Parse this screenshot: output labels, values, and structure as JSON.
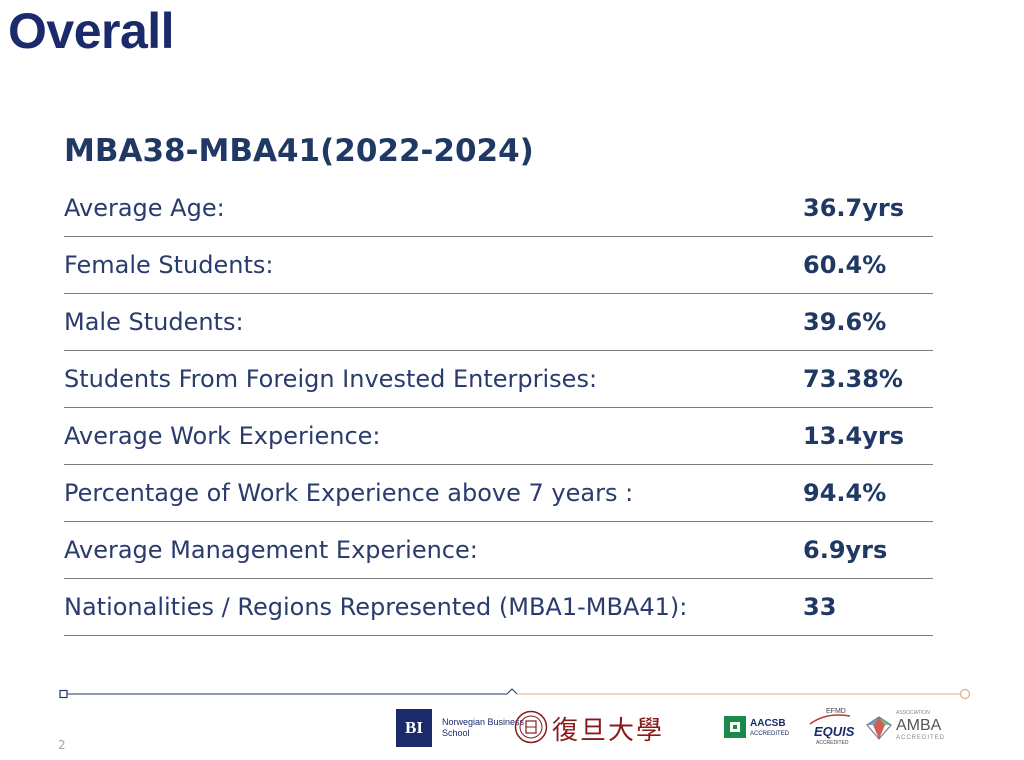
{
  "slide": {
    "title": "Overall",
    "page_number": "2"
  },
  "section": {
    "heading": "MBA38-MBA41(2022-2024)"
  },
  "stats": [
    {
      "label": "Average Age:",
      "value": "36.7yrs"
    },
    {
      "label": "Female Students:",
      "value": "60.4%"
    },
    {
      "label": "Male Students:",
      "value": "39.6%"
    },
    {
      "label": "Students From Foreign Invested Enterprises:",
      "value": "73.38%"
    },
    {
      "label": "Average Work Experience:",
      "value": "13.4yrs"
    },
    {
      "label": "Percentage of Work Experience above 7 years :",
      "value": "94.4%"
    },
    {
      "label": "Average Management Experience:",
      "value": "6.9yrs"
    },
    {
      "label": "Nationalities / Regions Represented (MBA1-MBA41):",
      "value": "33"
    }
  ],
  "footer": {
    "bi_logo_mark": "BI",
    "bi_logo_text": "Norwegian Business School",
    "fudan_text": "復旦大學",
    "aacsb_name": "AACSB",
    "aacsb_sub": "ACCREDITED",
    "equis_top": "EFMD",
    "equis_name": "EQUIS",
    "equis_sub": "ACCREDITED",
    "amba_assoc": "ASSOCIATION",
    "amba_name": "AMBA",
    "amba_sub": "ACCREDITED"
  },
  "colors": {
    "title": "#1b2a6b",
    "heading": "#1f3864",
    "label_text": "#2a3c6e",
    "divider": "#7f7f7f",
    "footer_line_left": "#1f3864",
    "footer_line_right": "#e0a98a"
  }
}
